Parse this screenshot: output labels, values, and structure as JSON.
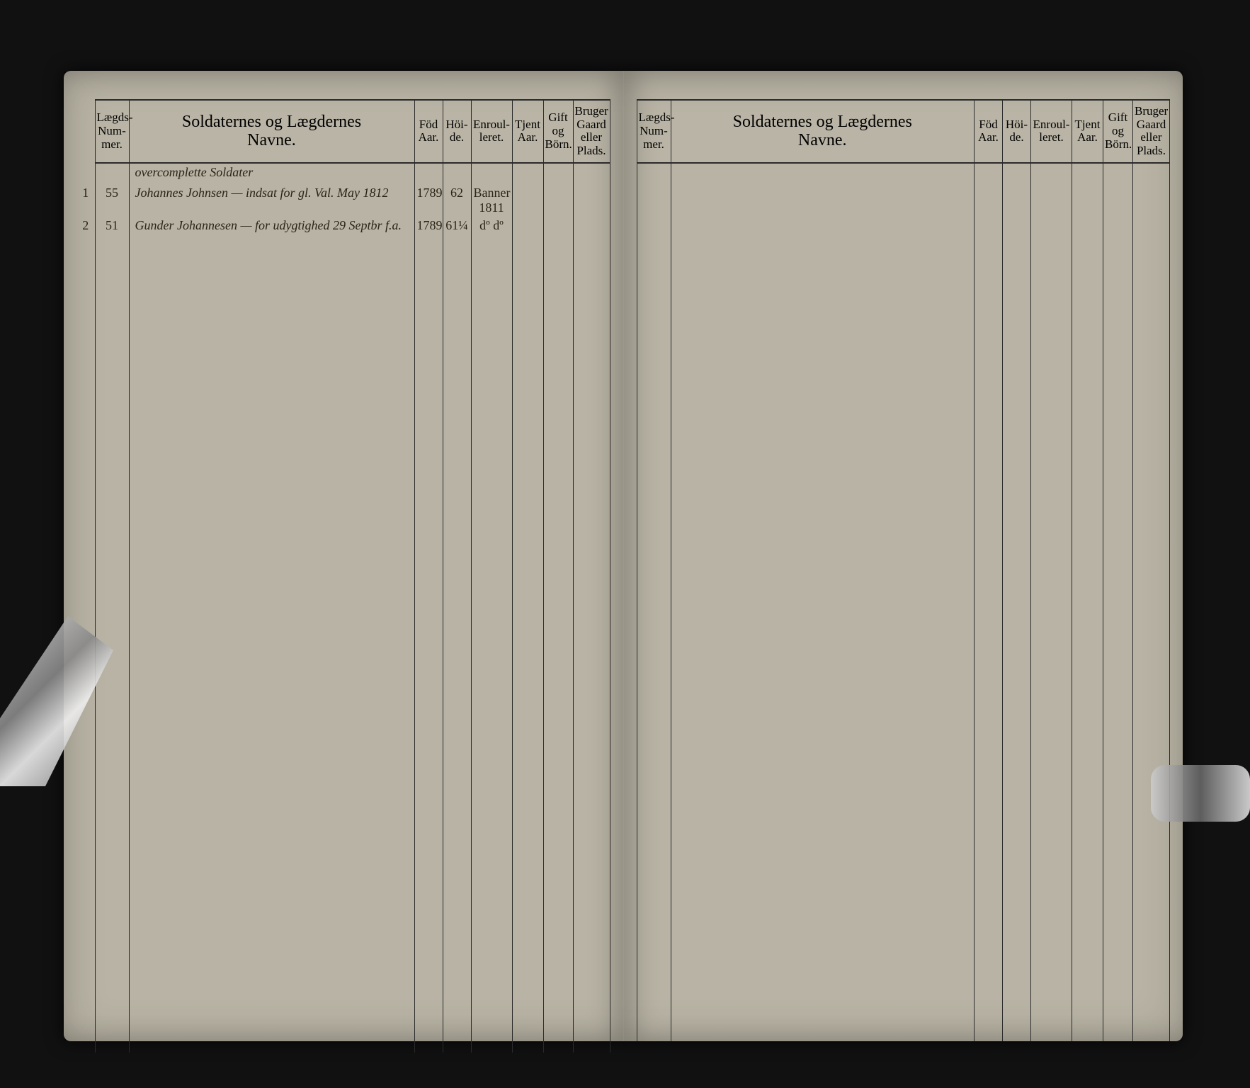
{
  "document": {
    "type": "ledger",
    "background_color": "#b8b3a4",
    "ink_color": "#2b2418",
    "rule_color": "#2a2a2a",
    "title_fontsize": 24,
    "header_fontsize": 17
  },
  "columns": {
    "laegds": "Lægds-\nNum-\nmer.",
    "names": "Soldaternes og Lægdernes\nNavne.",
    "fod": "Föd\nAar.",
    "hoide": "Höi-\nde.",
    "enroul": "Enroul-\nleret.",
    "tjent": "Tjent\nAar.",
    "gift": "Gift\nog\nBörn.",
    "bruger": "Bruger\nGaard\neller\nPlads."
  },
  "left_page": {
    "section_heading": "overcomplette Soldater",
    "rows": [
      {
        "row_num": "1",
        "laegds": "55",
        "name": "Johannes Johnsen — indsat for gl. Val. May 1812",
        "fod": "1789",
        "hoide": "62",
        "enroul": "Banner 1811",
        "tjent": "",
        "gift": "",
        "bruger": ""
      },
      {
        "row_num": "2",
        "laegds": "51",
        "name": "Gunder Johannesen — for udygtighed 29 Septbr f.a.",
        "fod": "1789",
        "hoide": "61¼",
        "enroul": "dº dº",
        "tjent": "",
        "gift": "",
        "bruger": ""
      }
    ]
  },
  "right_page": {
    "rows": []
  }
}
